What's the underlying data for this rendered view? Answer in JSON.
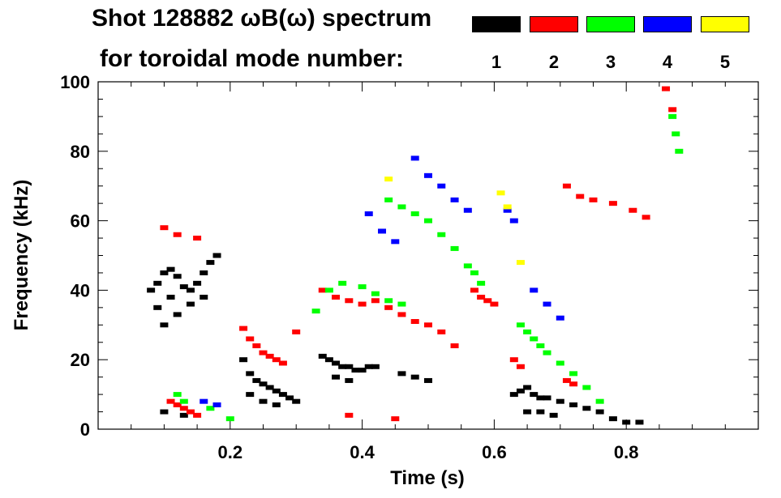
{
  "header": {
    "title_line1": "Shot 128882 ωB(ω) spectrum",
    "title_line2": "for toroidal mode number:"
  },
  "legend": [
    {
      "mode": "1",
      "color": "#000000"
    },
    {
      "mode": "2",
      "color": "#ff0000"
    },
    {
      "mode": "3",
      "color": "#00ff00"
    },
    {
      "mode": "4",
      "color": "#0000ff"
    },
    {
      "mode": "5",
      "color": "#ffff00"
    }
  ],
  "chart_data": {
    "type": "scatter",
    "title": "Shot 128882 ωB(ω) spectrum",
    "subtitle": "for toroidal mode number:",
    "xlabel": "Time (s)",
    "ylabel": "Frequency (kHz)",
    "xlim": [
      0.0,
      1.0
    ],
    "ylim": [
      0,
      100
    ],
    "xticks": [
      0.2,
      0.4,
      0.6,
      0.8
    ],
    "xtick_labels": [
      "0.2",
      "0.4",
      "0.6",
      "0.8"
    ],
    "yticks": [
      0,
      20,
      40,
      60,
      80,
      100
    ],
    "ytick_labels": [
      "0",
      "20",
      "40",
      "60",
      "80",
      "100"
    ],
    "grid": false,
    "legend_position": "top-right",
    "series": [
      {
        "name": "1",
        "color": "#000000",
        "points": [
          [
            0.08,
            40
          ],
          [
            0.09,
            42
          ],
          [
            0.1,
            45
          ],
          [
            0.11,
            46
          ],
          [
            0.12,
            44
          ],
          [
            0.13,
            41
          ],
          [
            0.14,
            40
          ],
          [
            0.15,
            42
          ],
          [
            0.16,
            45
          ],
          [
            0.17,
            48
          ],
          [
            0.18,
            50
          ],
          [
            0.09,
            35
          ],
          [
            0.1,
            30
          ],
          [
            0.11,
            38
          ],
          [
            0.12,
            33
          ],
          [
            0.14,
            36
          ],
          [
            0.16,
            38
          ],
          [
            0.1,
            5
          ],
          [
            0.13,
            4
          ],
          [
            0.22,
            20
          ],
          [
            0.23,
            16
          ],
          [
            0.24,
            14
          ],
          [
            0.25,
            13
          ],
          [
            0.26,
            12
          ],
          [
            0.27,
            11
          ],
          [
            0.28,
            10
          ],
          [
            0.29,
            9
          ],
          [
            0.3,
            8
          ],
          [
            0.23,
            10
          ],
          [
            0.25,
            8
          ],
          [
            0.27,
            7
          ],
          [
            0.34,
            21
          ],
          [
            0.35,
            20
          ],
          [
            0.36,
            19
          ],
          [
            0.37,
            18
          ],
          [
            0.38,
            18
          ],
          [
            0.39,
            17
          ],
          [
            0.4,
            17
          ],
          [
            0.41,
            18
          ],
          [
            0.42,
            18
          ],
          [
            0.36,
            15
          ],
          [
            0.38,
            14
          ],
          [
            0.46,
            16
          ],
          [
            0.48,
            15
          ],
          [
            0.5,
            14
          ],
          [
            0.63,
            10
          ],
          [
            0.64,
            11
          ],
          [
            0.65,
            12
          ],
          [
            0.66,
            10
          ],
          [
            0.67,
            9
          ],
          [
            0.68,
            9
          ],
          [
            0.7,
            8
          ],
          [
            0.72,
            7
          ],
          [
            0.74,
            6
          ],
          [
            0.76,
            5
          ],
          [
            0.78,
            3
          ],
          [
            0.8,
            2
          ],
          [
            0.82,
            2
          ],
          [
            0.65,
            5
          ],
          [
            0.67,
            5
          ],
          [
            0.69,
            4
          ]
        ]
      },
      {
        "name": "2",
        "color": "#ff0000",
        "points": [
          [
            0.1,
            58
          ],
          [
            0.12,
            56
          ],
          [
            0.15,
            55
          ],
          [
            0.11,
            8
          ],
          [
            0.12,
            7
          ],
          [
            0.13,
            6
          ],
          [
            0.14,
            5
          ],
          [
            0.15,
            4
          ],
          [
            0.22,
            29
          ],
          [
            0.23,
            26
          ],
          [
            0.24,
            24
          ],
          [
            0.25,
            22
          ],
          [
            0.26,
            21
          ],
          [
            0.27,
            20
          ],
          [
            0.28,
            19
          ],
          [
            0.3,
            28
          ],
          [
            0.34,
            40
          ],
          [
            0.36,
            38
          ],
          [
            0.38,
            37
          ],
          [
            0.4,
            36
          ],
          [
            0.42,
            37
          ],
          [
            0.44,
            35
          ],
          [
            0.46,
            33
          ],
          [
            0.48,
            31
          ],
          [
            0.5,
            30
          ],
          [
            0.52,
            28
          ],
          [
            0.54,
            24
          ],
          [
            0.57,
            40
          ],
          [
            0.58,
            38
          ],
          [
            0.59,
            37
          ],
          [
            0.6,
            36
          ],
          [
            0.63,
            20
          ],
          [
            0.64,
            18
          ],
          [
            0.71,
            14
          ],
          [
            0.72,
            13
          ],
          [
            0.71,
            70
          ],
          [
            0.73,
            67
          ],
          [
            0.75,
            66
          ],
          [
            0.78,
            65
          ],
          [
            0.81,
            63
          ],
          [
            0.83,
            61
          ],
          [
            0.86,
            98
          ],
          [
            0.87,
            92
          ],
          [
            0.38,
            4
          ],
          [
            0.45,
            3
          ]
        ]
      },
      {
        "name": "3",
        "color": "#00ff00",
        "points": [
          [
            0.12,
            10
          ],
          [
            0.13,
            8
          ],
          [
            0.17,
            6
          ],
          [
            0.2,
            3
          ],
          [
            0.33,
            34
          ],
          [
            0.35,
            40
          ],
          [
            0.37,
            42
          ],
          [
            0.4,
            41
          ],
          [
            0.42,
            39
          ],
          [
            0.44,
            37
          ],
          [
            0.46,
            36
          ],
          [
            0.44,
            66
          ],
          [
            0.46,
            64
          ],
          [
            0.48,
            62
          ],
          [
            0.5,
            60
          ],
          [
            0.52,
            56
          ],
          [
            0.54,
            52
          ],
          [
            0.56,
            47
          ],
          [
            0.57,
            45
          ],
          [
            0.58,
            42
          ],
          [
            0.64,
            30
          ],
          [
            0.65,
            28
          ],
          [
            0.66,
            26
          ],
          [
            0.67,
            24
          ],
          [
            0.68,
            22
          ],
          [
            0.7,
            19
          ],
          [
            0.72,
            16
          ],
          [
            0.74,
            12
          ],
          [
            0.76,
            8
          ],
          [
            0.87,
            90
          ],
          [
            0.875,
            85
          ],
          [
            0.88,
            80
          ]
        ]
      },
      {
        "name": "4",
        "color": "#0000ff",
        "points": [
          [
            0.16,
            8
          ],
          [
            0.18,
            7
          ],
          [
            0.41,
            62
          ],
          [
            0.43,
            57
          ],
          [
            0.45,
            54
          ],
          [
            0.48,
            78
          ],
          [
            0.5,
            73
          ],
          [
            0.52,
            70
          ],
          [
            0.54,
            66
          ],
          [
            0.56,
            63
          ],
          [
            0.62,
            63
          ],
          [
            0.63,
            60
          ],
          [
            0.66,
            40
          ],
          [
            0.68,
            36
          ],
          [
            0.7,
            32
          ]
        ]
      },
      {
        "name": "5",
        "color": "#ffff00",
        "points": [
          [
            0.44,
            72
          ],
          [
            0.61,
            68
          ],
          [
            0.62,
            64
          ],
          [
            0.64,
            48
          ]
        ]
      }
    ]
  }
}
